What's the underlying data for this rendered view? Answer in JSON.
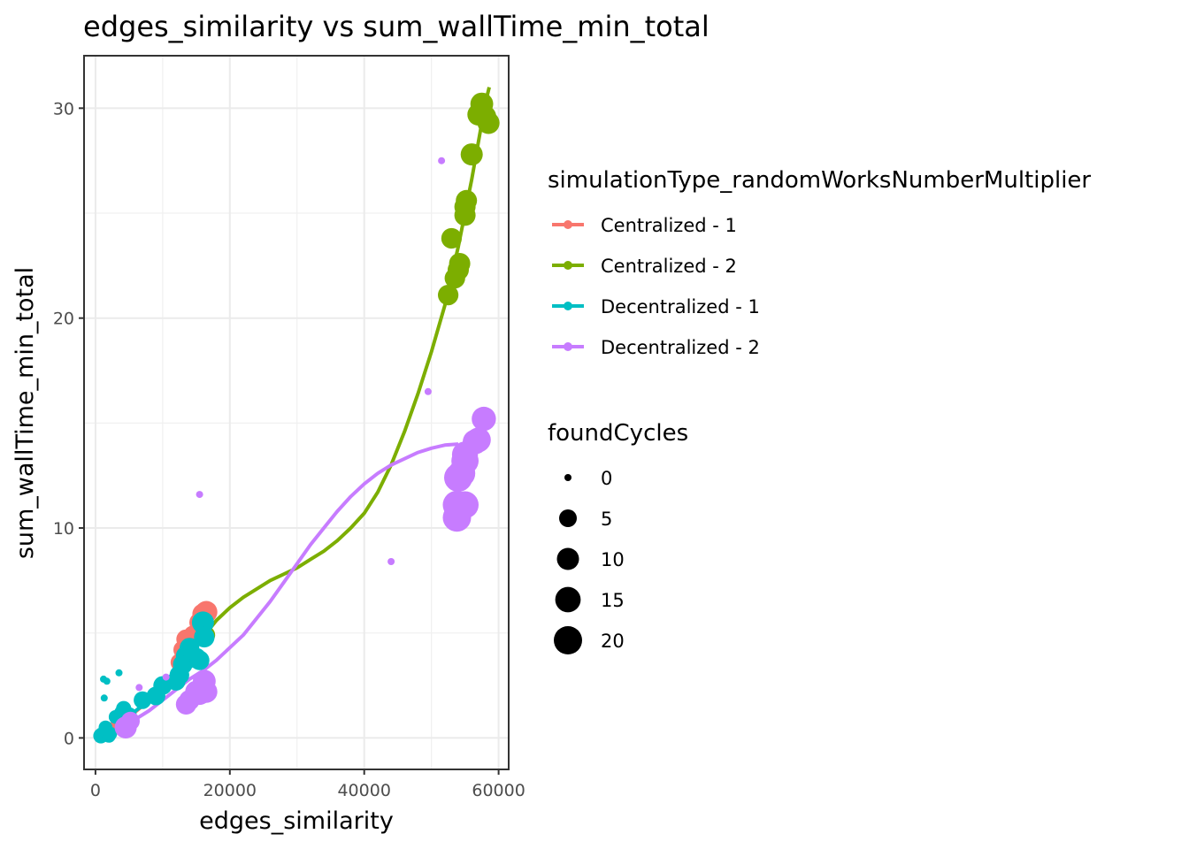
{
  "chart_data": {
    "type": "scatter",
    "title": "edges_similarity  vs  sum_wallTime_min_total",
    "xlabel": "edges_similarity",
    "ylabel": "sum_wallTime_min_total",
    "xlim": [
      -1700,
      61500
    ],
    "ylim": [
      -1.5,
      32.5
    ],
    "xticks": [
      0,
      20000,
      40000,
      60000
    ],
    "xtick_labels": [
      "0",
      "20000",
      "40000",
      "60000"
    ],
    "yticks": [
      0,
      10,
      20,
      30
    ],
    "ytick_labels": [
      "0",
      "10",
      "20",
      "30"
    ],
    "grid": true,
    "legend_placement": "right",
    "color_legend": {
      "title": "simulationType_randomWorksNumberMultiplier"
    },
    "size_legend": {
      "title": "foundCycles",
      "values": [
        0,
        5,
        10,
        15,
        20
      ],
      "labels": [
        "0",
        "5",
        "10",
        "15",
        "20"
      ]
    },
    "series": [
      {
        "name": "Centralized - 1",
        "color": "#F8766D",
        "points": [
          [
            1500,
            0.3,
            0
          ],
          [
            2500,
            0.4,
            0
          ],
          [
            3000,
            0.6,
            1
          ],
          [
            4000,
            0.8,
            2
          ],
          [
            5000,
            1.0,
            3
          ],
          [
            12500,
            3.6,
            5
          ],
          [
            13000,
            4.2,
            6
          ],
          [
            13500,
            4.7,
            7
          ],
          [
            14500,
            4.9,
            6
          ],
          [
            15500,
            5.5,
            8
          ],
          [
            16000,
            5.9,
            9
          ],
          [
            16500,
            6.0,
            10
          ]
        ],
        "smooth": [
          [
            1500,
            0.3
          ],
          [
            5000,
            1.0
          ],
          [
            10000,
            2.3
          ],
          [
            13000,
            3.6
          ],
          [
            15000,
            4.8
          ],
          [
            16500,
            6.0
          ]
        ]
      },
      {
        "name": "Centralized - 2",
        "color": "#7CAE00",
        "points": [
          [
            16500,
            4.9,
            5
          ],
          [
            52500,
            21.1,
            8
          ],
          [
            53000,
            23.8,
            8
          ],
          [
            53500,
            21.9,
            8
          ],
          [
            54000,
            22.3,
            9
          ],
          [
            54200,
            22.6,
            9
          ],
          [
            55000,
            24.9,
            9
          ],
          [
            55000,
            25.3,
            9
          ],
          [
            55200,
            25.6,
            9
          ],
          [
            56000,
            27.8,
            10
          ],
          [
            57000,
            29.7,
            10
          ],
          [
            57500,
            30.2,
            11
          ],
          [
            58000,
            29.6,
            10
          ],
          [
            58500,
            29.3,
            10
          ]
        ],
        "smooth": [
          [
            12000,
            3.0
          ],
          [
            14000,
            3.9
          ],
          [
            16000,
            4.8
          ],
          [
            18000,
            5.6
          ],
          [
            20000,
            6.2
          ],
          [
            22000,
            6.7
          ],
          [
            24000,
            7.1
          ],
          [
            26000,
            7.5
          ],
          [
            28000,
            7.8
          ],
          [
            30000,
            8.1
          ],
          [
            32000,
            8.5
          ],
          [
            34000,
            8.9
          ],
          [
            36000,
            9.4
          ],
          [
            38000,
            10.0
          ],
          [
            40000,
            10.7
          ],
          [
            42000,
            11.7
          ],
          [
            44000,
            13.0
          ],
          [
            46000,
            14.6
          ],
          [
            48000,
            16.4
          ],
          [
            50000,
            18.4
          ],
          [
            52000,
            20.6
          ],
          [
            54000,
            23.4
          ],
          [
            56000,
            26.6
          ],
          [
            57000,
            28.4
          ],
          [
            58000,
            30.2
          ],
          [
            58600,
            31.0
          ]
        ]
      },
      {
        "name": "Decentralized - 1",
        "color": "#00BFC4",
        "points": [
          [
            800,
            0.1,
            3
          ],
          [
            1000,
            0.15,
            3
          ],
          [
            1200,
            2.8,
            0
          ],
          [
            1300,
            1.9,
            0
          ],
          [
            1500,
            0.5,
            2
          ],
          [
            1700,
            2.7,
            0
          ],
          [
            2000,
            0.1,
            2
          ],
          [
            2200,
            0.2,
            2
          ],
          [
            3000,
            1.0,
            2
          ],
          [
            3500,
            3.1,
            0
          ],
          [
            3800,
            1.2,
            2
          ],
          [
            4200,
            1.4,
            3
          ],
          [
            4800,
            0.9,
            3
          ],
          [
            5000,
            1.1,
            3
          ],
          [
            7000,
            1.8,
            5
          ],
          [
            9000,
            2.0,
            6
          ],
          [
            10000,
            2.5,
            6
          ],
          [
            12000,
            2.7,
            6
          ],
          [
            12500,
            3.0,
            7
          ],
          [
            13000,
            3.5,
            7
          ],
          [
            13500,
            3.9,
            8
          ],
          [
            14000,
            4.3,
            7
          ],
          [
            15000,
            3.8,
            8
          ],
          [
            15500,
            3.7,
            7
          ],
          [
            16000,
            5.5,
            10
          ],
          [
            16200,
            4.8,
            8
          ]
        ],
        "smooth": [
          [
            800,
            0.1
          ],
          [
            4000,
            0.8
          ],
          [
            8000,
            1.8
          ],
          [
            11000,
            2.5
          ],
          [
            13000,
            3.3
          ],
          [
            15000,
            4.3
          ],
          [
            16500,
            5.5
          ]
        ]
      },
      {
        "name": "Decentralized - 2",
        "color": "#C77CFF",
        "points": [
          [
            4500,
            0.5,
            10
          ],
          [
            5200,
            0.8,
            6
          ],
          [
            6500,
            2.4,
            0
          ],
          [
            10500,
            2.9,
            0
          ],
          [
            13500,
            1.6,
            8
          ],
          [
            14000,
            1.8,
            8
          ],
          [
            15000,
            2.2,
            10
          ],
          [
            15500,
            2.1,
            10
          ],
          [
            15500,
            11.6,
            0
          ],
          [
            16000,
            2.4,
            11
          ],
          [
            16200,
            2.7,
            11
          ],
          [
            16500,
            2.2,
            10
          ],
          [
            44000,
            8.4,
            0
          ],
          [
            49500,
            16.5,
            0
          ],
          [
            51500,
            27.5,
            0
          ],
          [
            53800,
            10.5,
            20
          ],
          [
            53800,
            11.1,
            20
          ],
          [
            54000,
            12.4,
            20
          ],
          [
            54500,
            12.6,
            18
          ],
          [
            55000,
            11.1,
            18
          ],
          [
            55000,
            13.2,
            18
          ],
          [
            55000,
            13.5,
            16
          ],
          [
            56500,
            14.1,
            14
          ],
          [
            57000,
            14.2,
            14
          ],
          [
            57800,
            15.2,
            13
          ]
        ],
        "smooth": [
          [
            4000,
            0.4
          ],
          [
            6000,
            0.9
          ],
          [
            8000,
            1.3
          ],
          [
            10000,
            1.8
          ],
          [
            12000,
            2.3
          ],
          [
            14000,
            2.8
          ],
          [
            16000,
            3.2
          ],
          [
            18000,
            3.7
          ],
          [
            20000,
            4.3
          ],
          [
            22000,
            4.9
          ],
          [
            24000,
            5.7
          ],
          [
            26000,
            6.5
          ],
          [
            28000,
            7.4
          ],
          [
            30000,
            8.3
          ],
          [
            32000,
            9.2
          ],
          [
            34000,
            10.0
          ],
          [
            36000,
            10.8
          ],
          [
            38000,
            11.5
          ],
          [
            40000,
            12.1
          ],
          [
            42000,
            12.6
          ],
          [
            44000,
            13.0
          ],
          [
            46000,
            13.3
          ],
          [
            48000,
            13.6
          ],
          [
            50000,
            13.8
          ],
          [
            52000,
            13.95
          ],
          [
            54000,
            14.0
          ]
        ]
      }
    ]
  }
}
